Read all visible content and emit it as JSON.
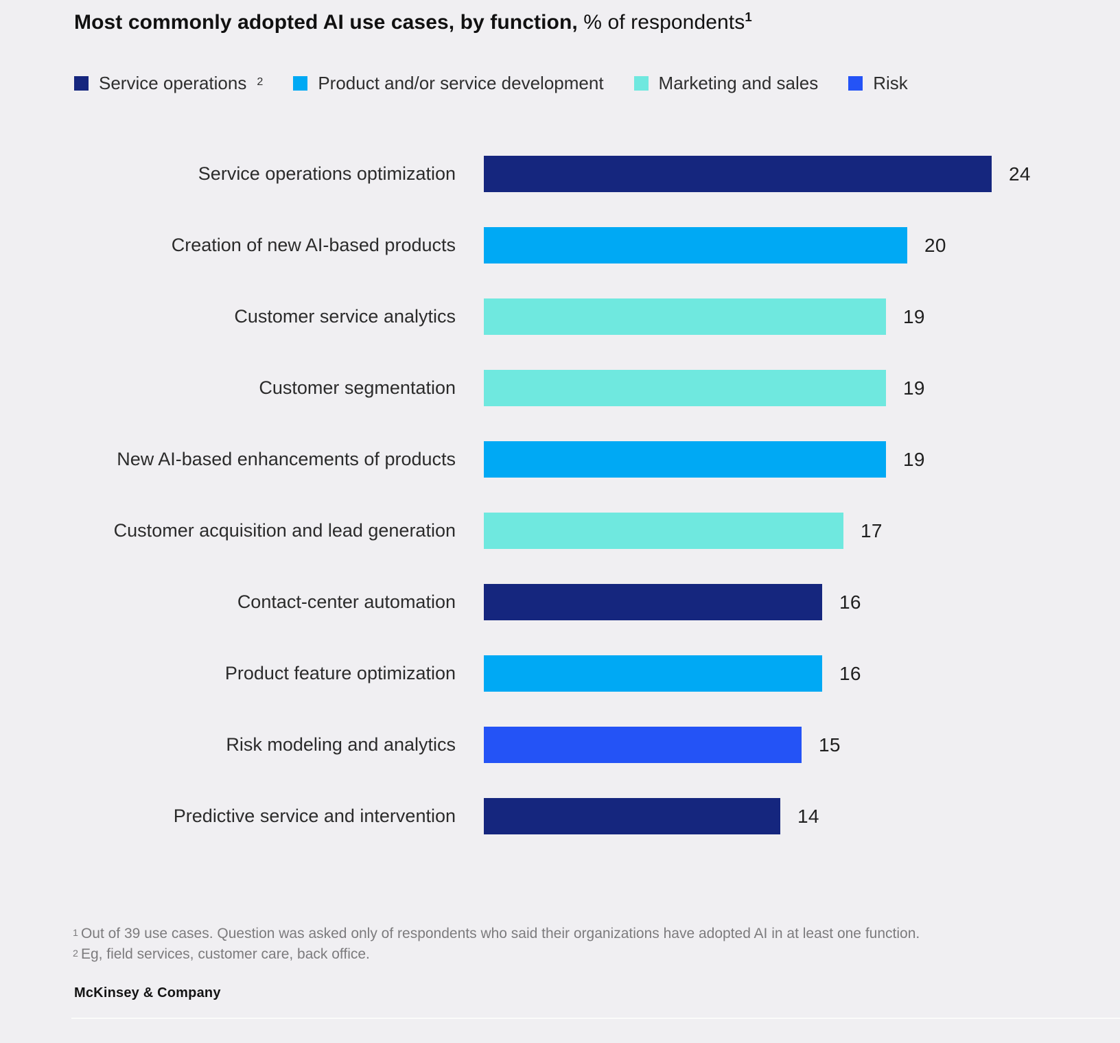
{
  "page": {
    "background": "#f0eff2"
  },
  "header": {
    "title_bold": "Most commonly adopted AI use cases, by function,",
    "title_regular": " % of respondents",
    "title_sup": "1"
  },
  "legend": {
    "items": [
      {
        "label": "Service operations",
        "sup": "2",
        "color": "#15267e"
      },
      {
        "label": "Product and/or service development",
        "sup": "",
        "color": "#00a9f4"
      },
      {
        "label": "Marketing and sales",
        "sup": "",
        "color": "#6fe8df"
      },
      {
        "label": "Risk",
        "sup": "",
        "color": "#2453f6"
      }
    ]
  },
  "chart_data": {
    "type": "bar",
    "orientation": "horizontal",
    "title": "Most commonly adopted AI use cases, by function, % of respondents",
    "xlabel": "",
    "ylabel": "",
    "xlim": [
      0,
      24
    ],
    "grid": false,
    "legend_position": "top",
    "categories": [
      "Service operations optimization",
      "Creation of new AI-based products",
      "Customer service analytics",
      "Customer segmentation",
      "New AI-based enhancements of products",
      "Customer acquisition and lead generation",
      "Contact-center automation",
      "Product feature optimization",
      "Risk modeling and analytics",
      "Predictive service and intervention"
    ],
    "values": [
      24,
      20,
      19,
      19,
      19,
      17,
      16,
      16,
      15,
      14
    ],
    "rows": [
      {
        "label": "Service operations optimization",
        "value": 24,
        "function": "Service operations",
        "color": "#15267e"
      },
      {
        "label": "Creation of new AI-based products",
        "value": 20,
        "function": "Product and/or service development",
        "color": "#00a9f4"
      },
      {
        "label": "Customer service analytics",
        "value": 19,
        "function": "Marketing and sales",
        "color": "#6fe8df"
      },
      {
        "label": "Customer segmentation",
        "value": 19,
        "function": "Marketing and sales",
        "color": "#6fe8df"
      },
      {
        "label": "New AI-based enhancements of products",
        "value": 19,
        "function": "Product and/or service development",
        "color": "#00a9f4"
      },
      {
        "label": "Customer acquisition and lead generation",
        "value": 17,
        "function": "Marketing and sales",
        "color": "#6fe8df"
      },
      {
        "label": "Contact-center automation",
        "value": 16,
        "function": "Service operations",
        "color": "#15267e"
      },
      {
        "label": "Product feature optimization",
        "value": 16,
        "function": "Product and/or service development",
        "color": "#00a9f4"
      },
      {
        "label": "Risk modeling and analytics",
        "value": 15,
        "function": "Risk",
        "color": "#2453f6"
      },
      {
        "label": "Predictive service and intervention",
        "value": 14,
        "function": "Service operations",
        "color": "#15267e"
      }
    ]
  },
  "footnotes": [
    {
      "sup": "1",
      "text": "Out of 39 use cases. Question was asked only of respondents who said their organizations have adopted AI in at least one function."
    },
    {
      "sup": "2",
      "text": "Eg, field services, customer care, back office."
    }
  ],
  "source": "McKinsey & Company"
}
